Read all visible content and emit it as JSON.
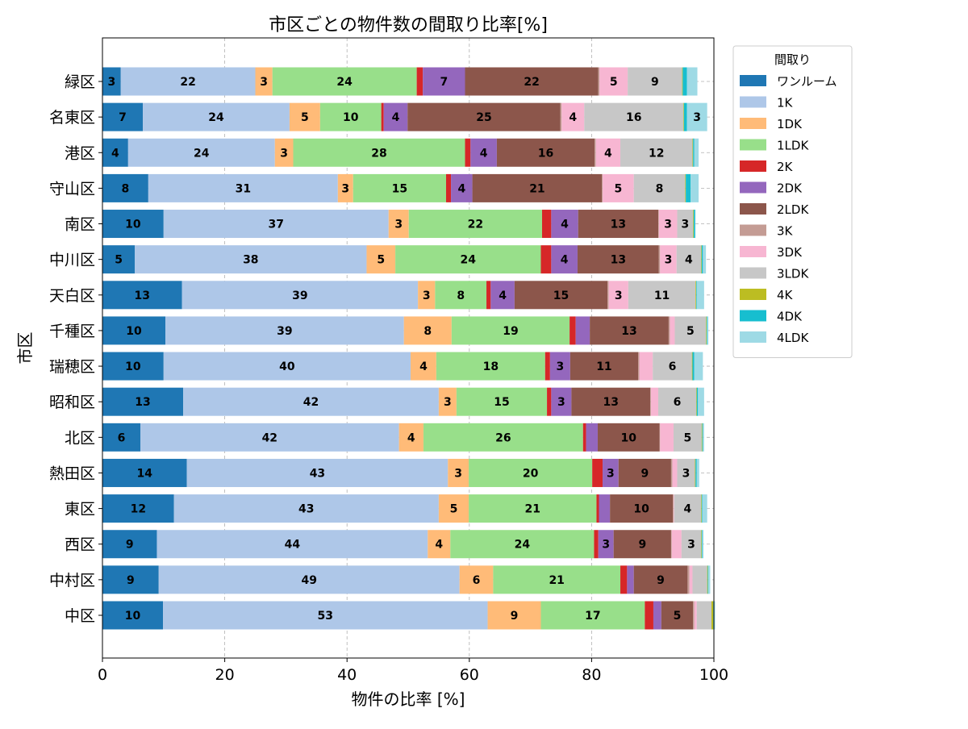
{
  "chart_data": {
    "type": "bar",
    "orientation": "horizontal",
    "stacked": true,
    "title": "市区ごとの物件数の間取り比率[%]",
    "xlabel": "物件の比率 [%]",
    "ylabel": "市区",
    "xlim": [
      0,
      100
    ],
    "xticks": [
      "0",
      "20",
      "40",
      "60",
      "80",
      "100"
    ],
    "grid": true,
    "legend": {
      "title": "間取り",
      "placement": "outside-top-right"
    },
    "categories": [
      "緑区",
      "名東区",
      "港区",
      "守山区",
      "南区",
      "中川区",
      "天白区",
      "千種区",
      "瑞穂区",
      "昭和区",
      "北区",
      "熱田区",
      "東区",
      "西区",
      "中村区",
      "中区"
    ],
    "series": [
      {
        "name": "ワンルーム",
        "color": "#1f77b4",
        "values": [
          3.0,
          6.6,
          4.2,
          7.5,
          10.0,
          5.3,
          13.0,
          10.3,
          10.0,
          13.2,
          6.2,
          13.8,
          11.7,
          8.9,
          9.2,
          9.9
        ]
      },
      {
        "name": "1K",
        "color": "#aec7e8",
        "values": [
          22.0,
          24.0,
          24.0,
          31.0,
          36.8,
          37.9,
          38.6,
          39.0,
          40.4,
          41.8,
          42.3,
          42.7,
          43.3,
          44.3,
          49.2,
          53.1
        ]
      },
      {
        "name": "1DK",
        "color": "#ffbb78",
        "values": [
          2.8,
          5.0,
          3.0,
          2.5,
          3.3,
          4.7,
          2.8,
          7.8,
          4.2,
          2.9,
          4.0,
          3.4,
          4.9,
          3.7,
          5.5,
          8.7
        ]
      },
      {
        "name": "1LDK",
        "color": "#98df8a",
        "values": [
          23.6,
          10.0,
          28.1,
          15.2,
          21.8,
          23.8,
          8.4,
          19.3,
          17.8,
          14.8,
          26.1,
          20.2,
          20.9,
          23.5,
          20.8,
          17.0
        ]
      },
      {
        "name": "2K",
        "color": "#d62728",
        "values": [
          1.0,
          0.4,
          0.9,
          0.8,
          1.5,
          1.7,
          0.7,
          1.0,
          0.8,
          0.7,
          0.5,
          1.7,
          0.4,
          0.7,
          1.1,
          1.4
        ]
      },
      {
        "name": "2DK",
        "color": "#9467bd",
        "values": [
          6.9,
          3.9,
          4.3,
          3.5,
          4.4,
          4.3,
          3.9,
          2.3,
          3.3,
          3.3,
          1.9,
          2.6,
          1.8,
          2.5,
          1.1,
          1.3
        ]
      },
      {
        "name": "2LDK",
        "color": "#8c564b",
        "values": [
          21.8,
          25.0,
          16.0,
          21.2,
          13.1,
          13.3,
          15.2,
          12.9,
          11.1,
          12.9,
          10.1,
          8.6,
          10.3,
          9.4,
          8.8,
          5.2
        ]
      },
      {
        "name": "3K",
        "color": "#c49c94",
        "values": [
          0.2,
          0.2,
          0.2,
          0.1,
          0.1,
          0.2,
          0.2,
          0.2,
          0.2,
          0.1,
          0.1,
          0.2,
          0.1,
          0.1,
          0.3,
          0.2
        ]
      },
      {
        "name": "3DK",
        "color": "#f7b6d2",
        "values": [
          4.6,
          3.7,
          4.0,
          5.1,
          3.0,
          2.7,
          3.2,
          0.8,
          2.2,
          1.2,
          2.2,
          0.8,
          0.1,
          1.6,
          0.5,
          0.4
        ]
      },
      {
        "name": "3LDK",
        "color": "#c7c7c7",
        "values": [
          8.9,
          16.2,
          11.8,
          8.4,
          2.6,
          4.0,
          11.0,
          5.1,
          6.4,
          6.2,
          4.6,
          2.9,
          4.4,
          3.2,
          2.4,
          2.4
        ]
      },
      {
        "name": "4K",
        "color": "#bcbd22",
        "values": [
          0.1,
          0.1,
          0.1,
          0.1,
          0.1,
          0.1,
          0.1,
          0.1,
          0.1,
          0.1,
          0.1,
          0.1,
          0.1,
          0.1,
          0.1,
          0.3
        ]
      },
      {
        "name": "4DK",
        "color": "#17becf",
        "values": [
          0.7,
          0.5,
          0.2,
          0.8,
          0.2,
          0.2,
          0.1,
          0.1,
          0.3,
          0.2,
          0.1,
          0.2,
          0.1,
          0.1,
          0.1,
          0.1
        ]
      },
      {
        "name": "4LDK",
        "color": "#9edae5",
        "values": [
          1.7,
          3.3,
          0.7,
          1.3,
          0.1,
          0.5,
          1.2,
          0.2,
          1.4,
          1.0,
          0.2,
          0.4,
          0.8,
          0.2,
          0.3,
          0.2
        ]
      }
    ]
  }
}
